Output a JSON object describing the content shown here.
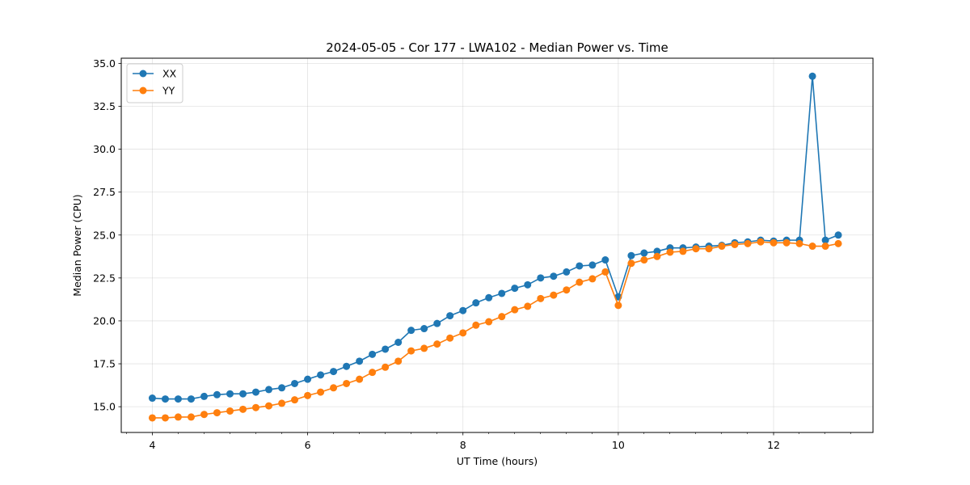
{
  "chart_data": {
    "type": "line",
    "title": "2024-05-05 - Cor 177 - LWA102 - Median Power vs. Time",
    "xlabel": "UT Time (hours)",
    "ylabel": "Median Power (CPU)",
    "xlim": [
      3.6,
      13.28
    ],
    "ylim": [
      13.5,
      35.3
    ],
    "xticks": [
      4,
      6,
      8,
      10,
      12
    ],
    "xtick_labels": [
      "4",
      "6",
      "8",
      "10",
      "12"
    ],
    "xminor_step": 0.333,
    "yticks": [
      15.0,
      17.5,
      20.0,
      22.5,
      25.0,
      27.5,
      30.0,
      32.5,
      35.0
    ],
    "ytick_labels": [
      "15.0",
      "17.5",
      "20.0",
      "22.5",
      "25.0",
      "27.5",
      "30.0",
      "32.5",
      "35.0"
    ],
    "grid": true,
    "legend_position": "top-left",
    "x": [
      4.0,
      4.167,
      4.333,
      4.5,
      4.667,
      4.833,
      5.0,
      5.167,
      5.333,
      5.5,
      5.667,
      5.833,
      6.0,
      6.167,
      6.333,
      6.5,
      6.667,
      6.833,
      7.0,
      7.167,
      7.333,
      7.5,
      7.667,
      7.833,
      8.0,
      8.167,
      8.333,
      8.5,
      8.667,
      8.833,
      9.0,
      9.167,
      9.333,
      9.5,
      9.667,
      9.833,
      10.0,
      10.167,
      10.333,
      10.5,
      10.667,
      10.833,
      11.0,
      11.167,
      11.333,
      11.5,
      11.667,
      11.833,
      12.0,
      12.167,
      12.333,
      12.5,
      12.667,
      12.833
    ],
    "series": [
      {
        "name": "XX",
        "color": "#1f77b4",
        "values": [
          15.5,
          15.45,
          15.45,
          15.45,
          15.6,
          15.7,
          15.75,
          15.75,
          15.85,
          16.0,
          16.1,
          16.35,
          16.6,
          16.85,
          17.05,
          17.35,
          17.65,
          18.05,
          18.35,
          18.75,
          19.45,
          19.55,
          19.85,
          20.3,
          20.6,
          21.05,
          21.35,
          21.6,
          21.9,
          22.1,
          22.5,
          22.6,
          22.85,
          23.2,
          23.25,
          23.55,
          21.4,
          23.8,
          23.95,
          24.05,
          24.25,
          24.25,
          24.3,
          24.35,
          24.4,
          24.55,
          24.6,
          24.7,
          24.65,
          24.7,
          24.7,
          34.25,
          24.7,
          25.0
        ]
      },
      {
        "name": "YY",
        "color": "#ff7f0e",
        "values": [
          14.35,
          14.35,
          14.4,
          14.4,
          14.55,
          14.65,
          14.75,
          14.85,
          14.95,
          15.05,
          15.2,
          15.4,
          15.65,
          15.85,
          16.1,
          16.35,
          16.6,
          17.0,
          17.3,
          17.65,
          18.25,
          18.4,
          18.65,
          19.0,
          19.3,
          19.75,
          19.95,
          20.25,
          20.65,
          20.85,
          21.3,
          21.5,
          21.8,
          22.25,
          22.45,
          22.85,
          20.9,
          23.35,
          23.55,
          23.75,
          24.0,
          24.05,
          24.2,
          24.2,
          24.35,
          24.45,
          24.5,
          24.6,
          24.55,
          24.55,
          24.5,
          24.35,
          24.35,
          24.5
        ]
      }
    ]
  }
}
